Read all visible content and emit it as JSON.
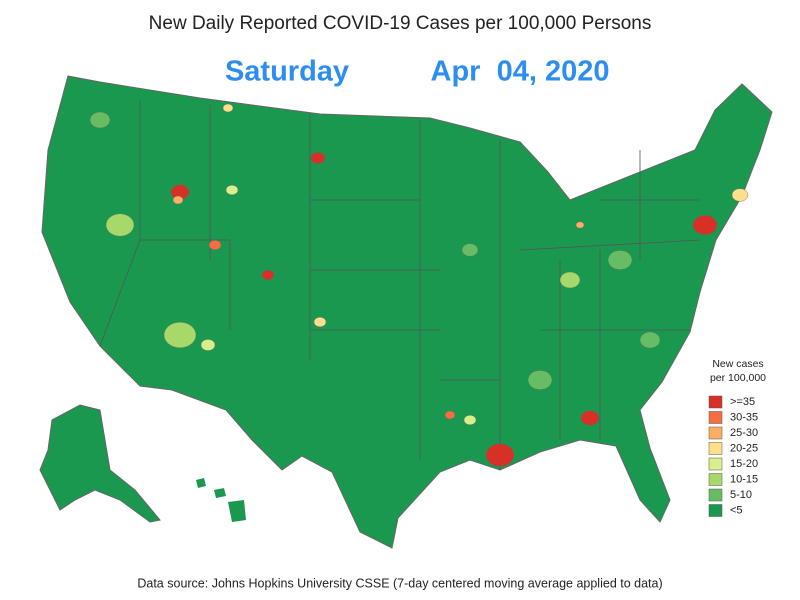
{
  "title": "New Daily Reported COVID-19 Cases per 100,000 Persons",
  "day": "Saturday",
  "date": "Apr  04, 2020",
  "legend": {
    "title": [
      "New cases",
      "per 100,000"
    ],
    "items": [
      {
        "label": ">=35",
        "color": "#d73027"
      },
      {
        "label": "30-35",
        "color": "#f46d43"
      },
      {
        "label": "25-30",
        "color": "#fdae61"
      },
      {
        "label": "20-25",
        "color": "#fee08b"
      },
      {
        "label": "15-20",
        "color": "#d9ef8b"
      },
      {
        "label": "10-15",
        "color": "#a6d96a"
      },
      {
        "label": "5-10",
        "color": "#66bd63"
      },
      {
        "label": "<5",
        "color": "#1a9850"
      }
    ]
  },
  "source": "Data source: Johns Hopkins University CSSE (7-day centered moving average applied to data)"
}
